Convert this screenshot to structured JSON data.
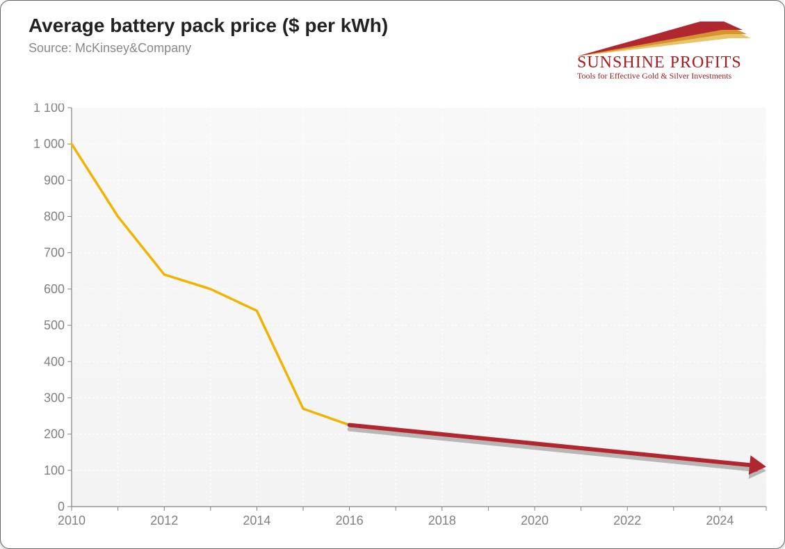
{
  "title": "Average battery pack price ($ per kWh)",
  "source": "Source: McKinsey&Company",
  "logo": {
    "brand_line1": "SUNSHINE PROFITS",
    "brand_line2": "Tools for Effective Gold & Silver Investments",
    "text_color": "#a51c1c",
    "swoosh_colors": [
      "#b0272f",
      "#d7932f",
      "#e7c66a"
    ]
  },
  "chart": {
    "type": "line",
    "plot_background": "#f3f3f3",
    "page_background": "#ffffff",
    "grid_color": "#ffffff",
    "axis_color": "#808080",
    "tick_label_color": "#808080",
    "tick_fontsize": 18,
    "title_fontsize": 28,
    "subtitle_fontsize": 18,
    "xlim": [
      2010,
      2025
    ],
    "ylim": [
      0,
      1100
    ],
    "x_major_ticks": [
      2010,
      2012,
      2014,
      2016,
      2018,
      2020,
      2022,
      2024
    ],
    "x_minor_step": 1,
    "y_ticks": [
      0,
      100,
      200,
      300,
      400,
      500,
      600,
      700,
      800,
      900,
      1000,
      1100
    ],
    "y_tick_labels": [
      "0",
      "100",
      "200",
      "300",
      "400",
      "500",
      "600",
      "700",
      "800",
      "900",
      "1 000",
      "1 100"
    ],
    "series_actual": {
      "color": "#f0b400",
      "line_width": 3.5,
      "x": [
        2010,
        2011,
        2012,
        2013,
        2014,
        2015,
        2016
      ],
      "y": [
        1000,
        800,
        640,
        600,
        540,
        270,
        225
      ]
    },
    "series_projection": {
      "color": "#b0272f",
      "line_width": 6,
      "shadow_color": "rgba(0,0,0,0.25)",
      "shadow_offset": 6,
      "arrowhead": true,
      "start": {
        "x": 2016,
        "y": 225
      },
      "end": {
        "x": 2025,
        "y": 110
      }
    }
  }
}
